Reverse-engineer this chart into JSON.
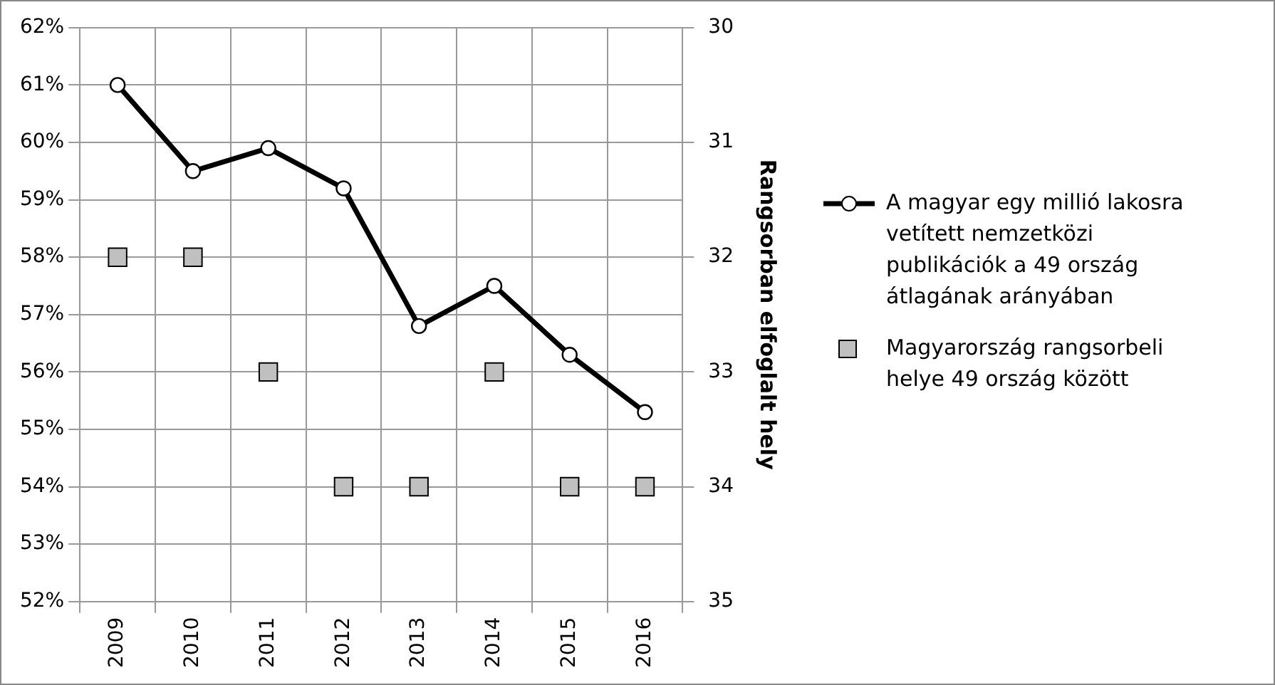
{
  "chart_data": {
    "type": "line",
    "y2label": "Rangsorban elfoglalt hely",
    "categories": [
      "2009",
      "2010",
      "2011",
      "2012",
      "2013",
      "2014",
      "2015",
      "2016"
    ],
    "series": [
      {
        "name": "A magyar egy millió lakosra vetített nemzetközi publikációk a 49 ország átlagának arányában",
        "color": "#000000",
        "marker": "circle",
        "values": [
          61.0,
          59.5,
          59.9,
          59.2,
          56.8,
          57.5,
          56.3,
          55.3
        ]
      },
      {
        "name": "Magyarország rangsorbeli helye 49 ország között",
        "type": "scatter",
        "axis": "y2",
        "color": "#c0c0c0",
        "marker": "square",
        "values": [
          32,
          32,
          33,
          34,
          34,
          33,
          34,
          34
        ]
      }
    ],
    "ylim": [
      52,
      62
    ],
    "yticks": [
      {
        "value": 52,
        "label": "52%"
      },
      {
        "value": 53,
        "label": "53%"
      },
      {
        "value": 54,
        "label": "54%"
      },
      {
        "value": 55,
        "label": "55%"
      },
      {
        "value": 56,
        "label": "56%"
      },
      {
        "value": 57,
        "label": "57%"
      },
      {
        "value": 58,
        "label": "58%"
      },
      {
        "value": 59,
        "label": "59%"
      },
      {
        "value": 60,
        "label": "60%"
      },
      {
        "value": 61,
        "label": "61%"
      },
      {
        "value": 62,
        "label": "62%"
      }
    ],
    "y2lim": [
      35,
      30
    ],
    "y2ticks": [
      30,
      31,
      32,
      33,
      34,
      35
    ],
    "grid": true,
    "legend": "right"
  }
}
